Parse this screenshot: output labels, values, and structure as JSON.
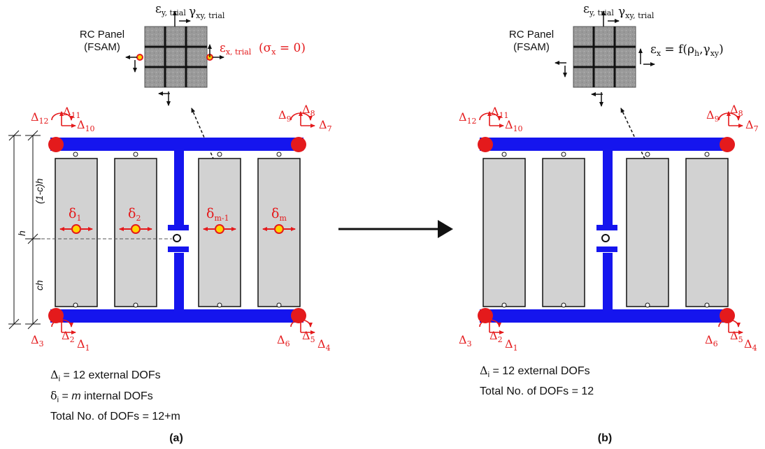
{
  "panel_label_line1": "RC Panel",
  "panel_label_line2": "(FSAM)",
  "strain": {
    "ey_a": "ε",
    "ey_sub_a": "y, trial",
    "gxy_a": "γ",
    "gxy_sub_a": "xy, trial",
    "ex_a": "ε",
    "ex_sub_a": "x, trial",
    "sigma_note": "(σ",
    "sigma_sub": "x",
    "sigma_tail": " = 0)",
    "ey_b": "ε",
    "ey_sub_b": "y, trial",
    "gxy_b": "γ",
    "gxy_sub_b": "xy, trial",
    "ex_b": "ε",
    "ex_sub_b": "x",
    "ex_b_rhs_pre": " = f(ρ",
    "ex_b_rho_sub": "h",
    "ex_b_mid": ",γ",
    "ex_b_gxy_sub": "xy",
    "ex_b_close": ")"
  },
  "dof": {
    "D12": "12",
    "D11": "11",
    "D10": "10",
    "D9": "9",
    "D8": "8",
    "D7": "7",
    "D3": "3",
    "D2": "2",
    "D1": "1",
    "D6": "6",
    "D5": "5",
    "D4": "4",
    "delta_sym": "Δ"
  },
  "internal": {
    "sym": "δ",
    "d1": "1",
    "d2": "2",
    "dm1": "m-1",
    "dm": "m"
  },
  "dims": {
    "h": "h",
    "top": "(1-c)h",
    "bottom": "ch"
  },
  "notes_a": {
    "line1_sym": "Δ",
    "line1_sub": "i",
    "line1_text": " = 12 external DOFs",
    "line2_sym": "δ",
    "line2_sub": "i",
    "line2_pre": " = ",
    "line2_m": "m",
    "line2_text": " internal DOFs",
    "line3": "Total No. of DOFs = 12+m"
  },
  "notes_b": {
    "line1_sym": "Δ",
    "line1_sub": "i",
    "line1_text": " = 12 external DOFs",
    "line2": "Total No. of DOFs = 12"
  },
  "captions": {
    "a": "(a)",
    "b": "(b)"
  },
  "colors": {
    "frame": "#1515ee",
    "dof": "#e41a1c",
    "strut": "#d2d2d2",
    "panel": "#9c9c9c"
  }
}
